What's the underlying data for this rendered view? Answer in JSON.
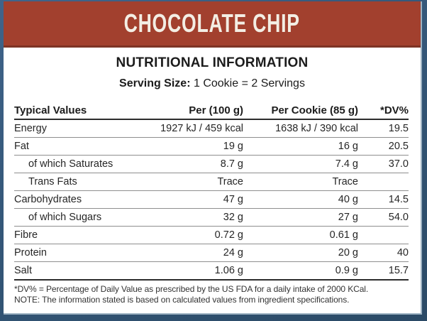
{
  "banner": {
    "title": "CHOCOLATE CHIP"
  },
  "header": {
    "title": "NUTRITIONAL INFORMATION",
    "serving_label": "Serving Size:",
    "serving_value": " 1 Cookie = 2 Servings"
  },
  "table": {
    "columns": [
      "Typical Values",
      "Per (100 g)",
      "Per Cookie (85 g)",
      "*DV%"
    ],
    "rows": [
      {
        "label": "Energy",
        "per100": "1927 kJ / 459 kcal",
        "perCookie": "1638 kJ / 390 kcal",
        "dv": "19.5",
        "indent": false
      },
      {
        "label": "Fat",
        "per100": "19 g",
        "perCookie": "16 g",
        "dv": "20.5",
        "indent": false
      },
      {
        "label": "of which Saturates",
        "per100": "8.7 g",
        "perCookie": "7.4 g",
        "dv": "37.0",
        "indent": true
      },
      {
        "label": "Trans Fats",
        "per100": "Trace",
        "perCookie": "Trace",
        "dv": "",
        "indent": true
      },
      {
        "label": "Carbohydrates",
        "per100": "47 g",
        "perCookie": "40 g",
        "dv": "14.5",
        "indent": false
      },
      {
        "label": "of which Sugars",
        "per100": "32 g",
        "perCookie": "27 g",
        "dv": "54.0",
        "indent": true
      },
      {
        "label": "Fibre",
        "per100": "0.72 g",
        "perCookie": "0.61 g",
        "dv": "",
        "indent": false
      },
      {
        "label": "Protein",
        "per100": "24 g",
        "perCookie": "20 g",
        "dv": "40",
        "indent": false
      },
      {
        "label": "Salt",
        "per100": "1.06 g",
        "perCookie": "0.9 g",
        "dv": "15.7",
        "indent": false
      }
    ]
  },
  "footnotes": {
    "dv_note": "*DV% = Percentage of Daily Value as prescribed by the US FDA for a daily intake of 2000 KCal.",
    "note": "NOTE: The information stated is based on calculated values from ingredient specifications."
  },
  "colors": {
    "banner_bg": "#a2402e",
    "banner_shadow": "#7d3425",
    "banner_text": "#f3eee4",
    "frame_blue": "#35587a",
    "frame_light_edge": "#9db2c2",
    "rule_dark": "#2d2d2d",
    "rule_gray": "#8e8e8e"
  }
}
